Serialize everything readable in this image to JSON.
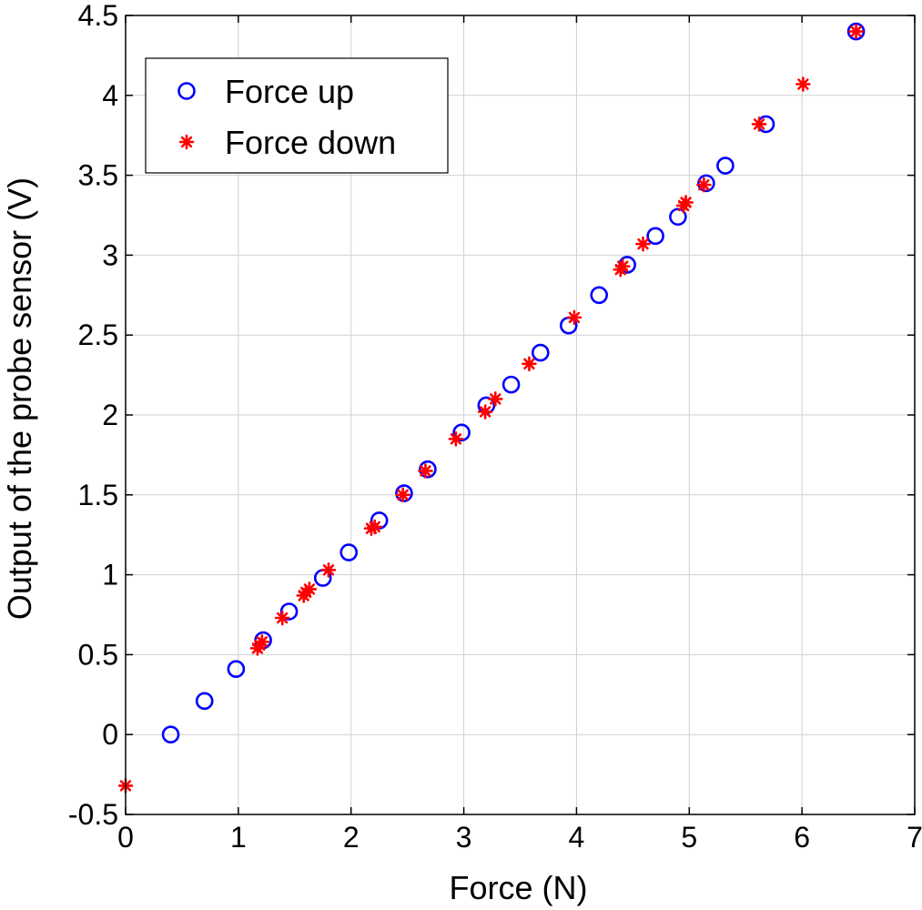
{
  "chart_data": {
    "type": "scatter",
    "xlabel": "Force (N)",
    "ylabel": "Output of the probe sensor (V)",
    "xlim": [
      0,
      7
    ],
    "ylim": [
      -0.5,
      4.5
    ],
    "x_ticks": [
      "0",
      "1",
      "2",
      "3",
      "4",
      "5",
      "6",
      "7"
    ],
    "y_ticks": [
      "-0.5",
      "0",
      "0.5",
      "1",
      "1.5",
      "2",
      "2.5",
      "3",
      "3.5",
      "4",
      "4.5"
    ],
    "grid": true,
    "legend_position": "top-left",
    "series": [
      {
        "name": "Force up",
        "marker": "circle",
        "color": "#0000ff",
        "points": [
          [
            0.4,
            0.0
          ],
          [
            0.7,
            0.21
          ],
          [
            0.98,
            0.41
          ],
          [
            1.22,
            0.59
          ],
          [
            1.45,
            0.77
          ],
          [
            1.75,
            0.98
          ],
          [
            1.98,
            1.14
          ],
          [
            2.25,
            1.34
          ],
          [
            2.47,
            1.51
          ],
          [
            2.68,
            1.66
          ],
          [
            2.98,
            1.89
          ],
          [
            3.2,
            2.06
          ],
          [
            3.42,
            2.19
          ],
          [
            3.68,
            2.39
          ],
          [
            3.93,
            2.56
          ],
          [
            4.2,
            2.75
          ],
          [
            4.45,
            2.94
          ],
          [
            4.7,
            3.12
          ],
          [
            4.9,
            3.24
          ],
          [
            5.15,
            3.45
          ],
          [
            5.32,
            3.56
          ],
          [
            5.68,
            3.82
          ],
          [
            6.48,
            4.4
          ]
        ]
      },
      {
        "name": "Force down",
        "marker": "star",
        "color": "#ff0000",
        "points": [
          [
            0.0,
            -0.32
          ],
          [
            1.17,
            0.54
          ],
          [
            1.19,
            0.56
          ],
          [
            1.21,
            0.58
          ],
          [
            1.39,
            0.73
          ],
          [
            1.58,
            0.87
          ],
          [
            1.6,
            0.89
          ],
          [
            1.63,
            0.91
          ],
          [
            1.8,
            1.03
          ],
          [
            2.18,
            1.29
          ],
          [
            2.21,
            1.3
          ],
          [
            2.46,
            1.5
          ],
          [
            2.66,
            1.65
          ],
          [
            2.93,
            1.85
          ],
          [
            3.19,
            2.02
          ],
          [
            3.28,
            2.1
          ],
          [
            3.58,
            2.32
          ],
          [
            3.98,
            2.61
          ],
          [
            4.39,
            2.91
          ],
          [
            4.41,
            2.93
          ],
          [
            4.59,
            3.07
          ],
          [
            4.95,
            3.31
          ],
          [
            4.97,
            3.33
          ],
          [
            5.13,
            3.44
          ],
          [
            5.62,
            3.82
          ],
          [
            6.01,
            4.07
          ],
          [
            6.48,
            4.4
          ]
        ]
      }
    ]
  }
}
